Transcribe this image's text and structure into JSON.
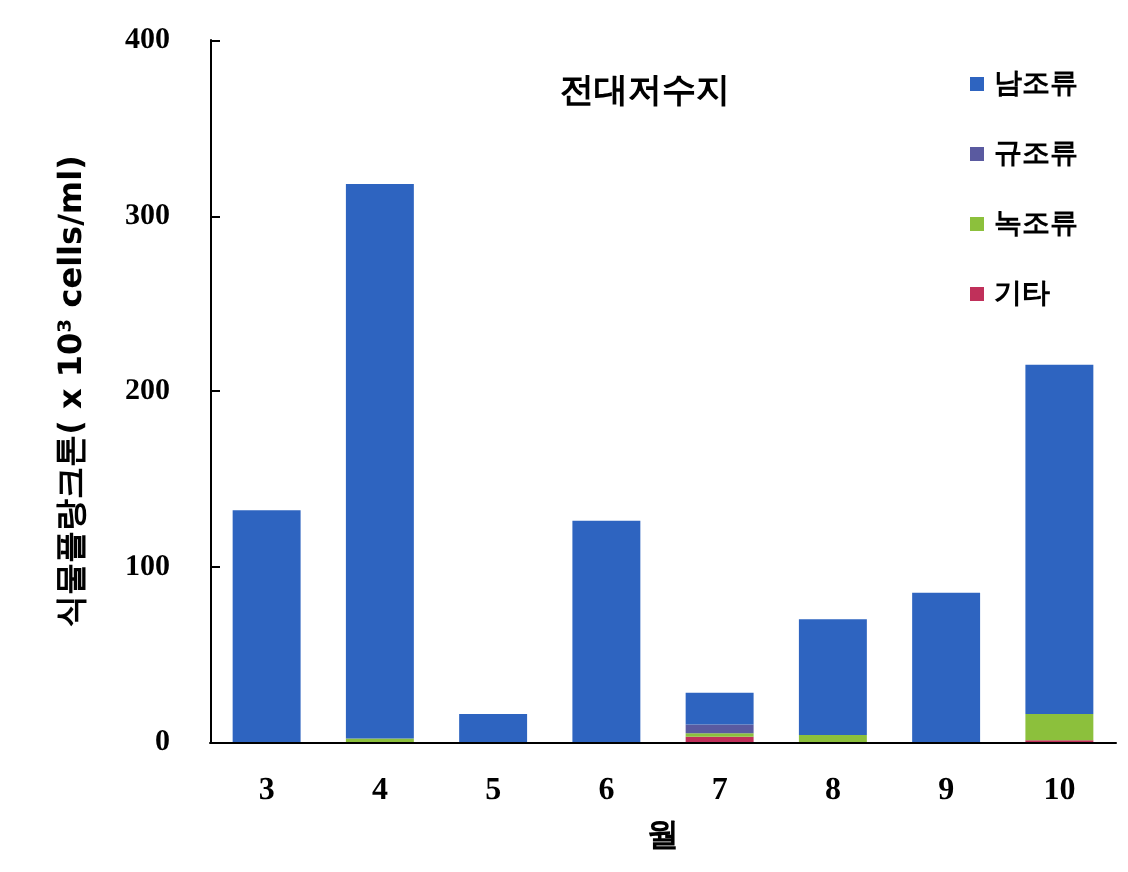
{
  "chart_data": {
    "type": "bar",
    "title": "전대저수지",
    "xlabel": "월",
    "ylabel": "식물플랑크톤( x 10³ cells/ml)",
    "categories": [
      "3",
      "4",
      "5",
      "6",
      "7",
      "8",
      "9",
      "10"
    ],
    "stacked": true,
    "series": [
      {
        "name": "기타",
        "color": "#c0305a",
        "values": [
          0,
          0,
          0,
          0,
          3,
          0,
          0,
          1
        ]
      },
      {
        "name": "녹조류",
        "color": "#8cc03c",
        "values": [
          0,
          2,
          0,
          0,
          2,
          4,
          0,
          15
        ]
      },
      {
        "name": "규조류",
        "color": "#5a5aa0",
        "values": [
          0,
          0,
          0,
          0,
          5,
          0,
          0,
          0
        ]
      },
      {
        "name": "남조류",
        "color": "#2e64c0",
        "values": [
          132,
          316,
          16,
          126,
          18,
          66,
          85,
          199
        ]
      }
    ],
    "ylim": [
      0,
      400
    ],
    "yticks": [
      0,
      100,
      200,
      300,
      400
    ],
    "grid": false,
    "legend": "top right"
  }
}
